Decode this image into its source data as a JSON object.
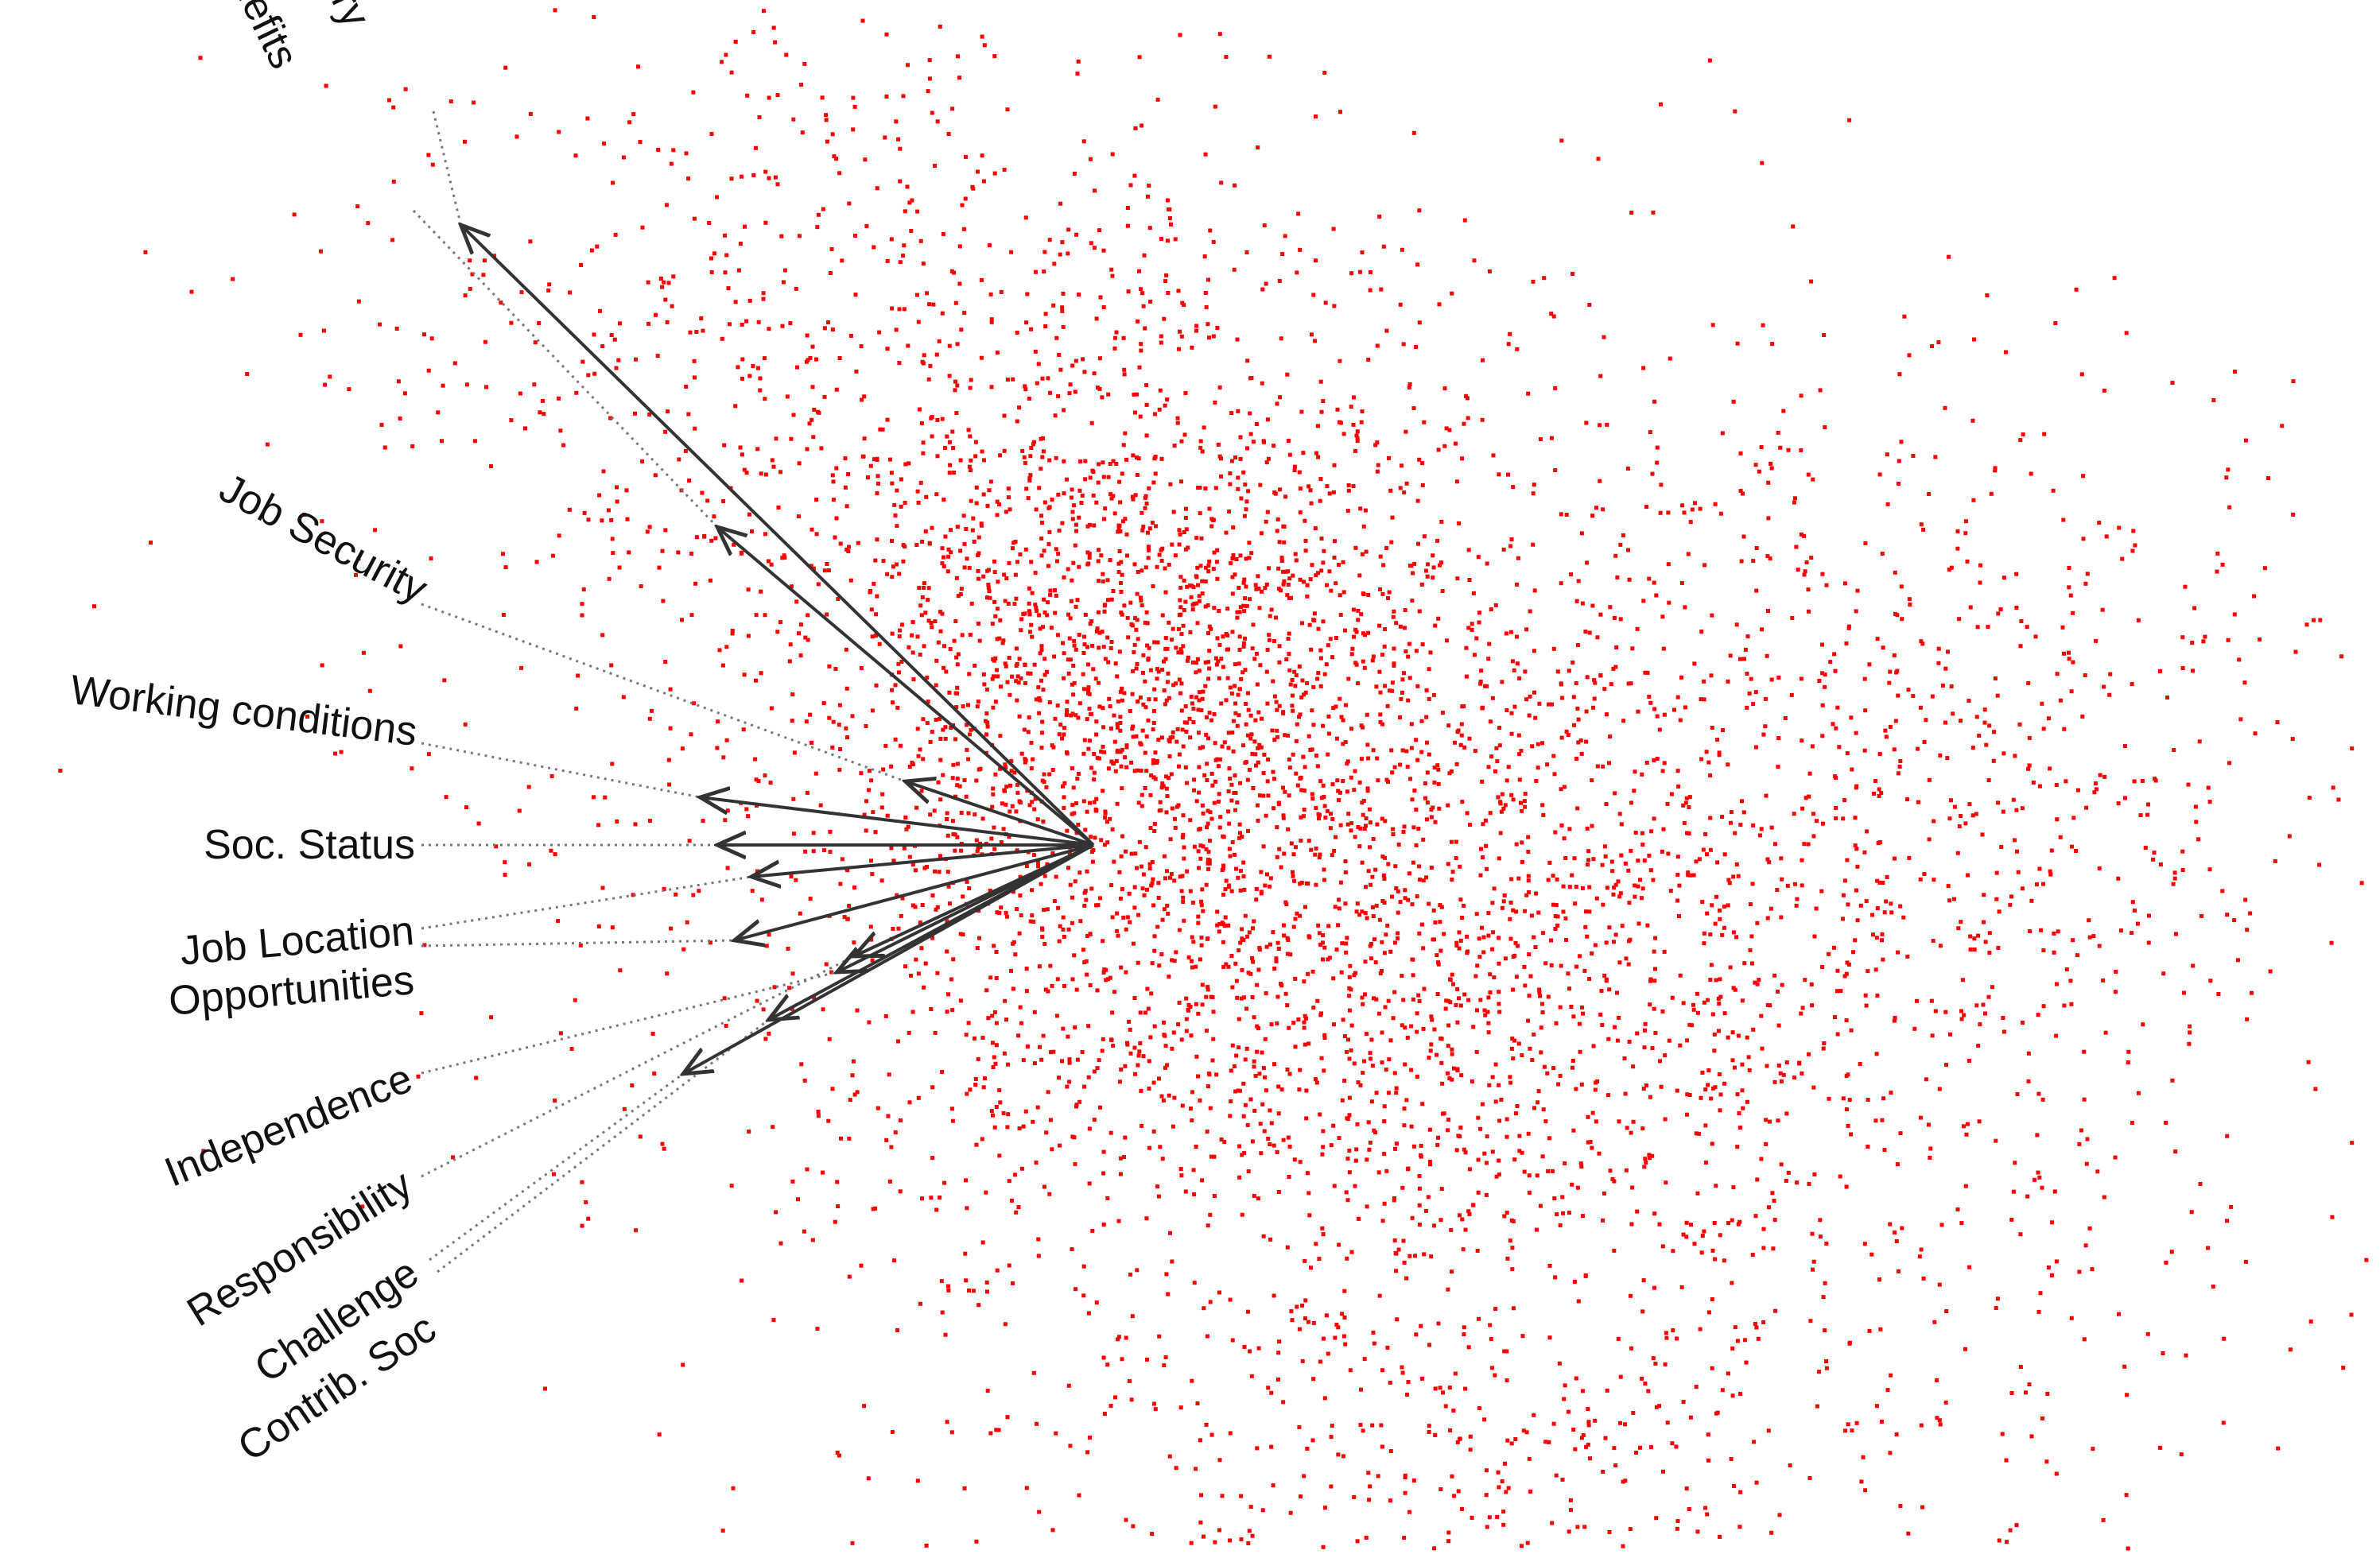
{
  "chart_data": {
    "type": "scatter",
    "title": "",
    "xlabel": "",
    "ylabel": "",
    "grid": false,
    "legend": "none",
    "axes_visible": false,
    "point_color": "#ff0000",
    "arrow_color": "#333333",
    "point_count_shown": 6000,
    "clusters": [
      {
        "cx": 0.55,
        "cy": 0.12,
        "sx": 0.95,
        "sy": 0.72,
        "weight": 0.28
      },
      {
        "cx": -0.55,
        "cy": 1.55,
        "sx": 0.85,
        "sy": 0.6,
        "weight": 0.14
      },
      {
        "cx": 0.85,
        "cy": -0.55,
        "sx": 0.85,
        "sy": 0.55,
        "weight": 0.22
      },
      {
        "cx": 2.55,
        "cy": 0.1,
        "sx": 0.6,
        "sy": 0.78,
        "weight": 0.1
      },
      {
        "cx": 0.1,
        "cy": 0.55,
        "sx": 0.5,
        "sy": 0.42,
        "weight": 0.18
      },
      {
        "cx": 1.3,
        "cy": -2.0,
        "sx": 0.85,
        "sy": 0.4,
        "weight": 0.08
      }
    ],
    "x_range": [
      -3.0,
      5.5
    ],
    "y_range": [
      -3.0,
      3.0
    ],
    "loadings": [
      {
        "name": "Salary",
        "x": -1.85,
        "y": 1.95
      },
      {
        "name": "Benefits",
        "x": -1.1,
        "y": 1.0
      },
      {
        "name": "Job Security",
        "x": -0.55,
        "y": 0.2
      },
      {
        "name": "Working conditions",
        "x": -1.15,
        "y": 0.15
      },
      {
        "name": "Soc. Status",
        "x": -1.1,
        "y": 0.0
      },
      {
        "name": "Job Location",
        "x": -1.0,
        "y": -0.1
      },
      {
        "name": "Opportunities",
        "x": -1.05,
        "y": -0.3
      },
      {
        "name": "Independence",
        "x": -0.75,
        "y": -0.4
      },
      {
        "name": "Responsibility",
        "x": -0.7,
        "y": -0.35
      },
      {
        "name": "Challenge",
        "x": -1.2,
        "y": -0.72
      },
      {
        "name": "Contrib. Soc",
        "x": -0.95,
        "y": -0.55
      }
    ]
  }
}
